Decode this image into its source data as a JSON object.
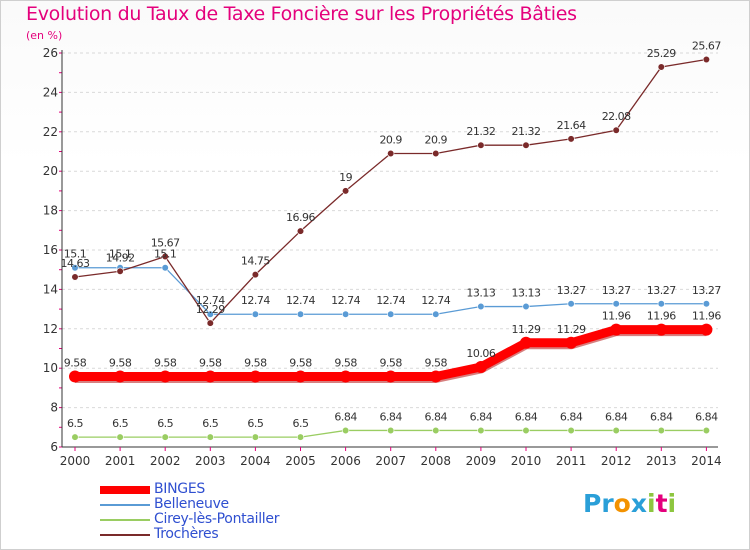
{
  "title": "Evolution du Taux de Taxe Foncière sur les Propriétés Bâties",
  "subtitle": "(en %)",
  "logo": {
    "text": "Proxiti",
    "letters": [
      {
        "ch": "P",
        "color": "#2a9fd8"
      },
      {
        "ch": "r",
        "color": "#2a9fd8"
      },
      {
        "ch": "o",
        "color": "#f39200"
      },
      {
        "ch": "x",
        "color": "#2a9fd8"
      },
      {
        "ch": "i",
        "color": "#8dc63f"
      },
      {
        "ch": "t",
        "color": "#e4007c"
      },
      {
        "ch": "i",
        "color": "#8dc63f"
      }
    ]
  },
  "chart_data": {
    "type": "line",
    "title": "Evolution du Taux de Taxe Foncière sur les Propriétés Bâties",
    "ylabel": "(en %)",
    "xlabel": "",
    "x": [
      "2000",
      "2001",
      "2002",
      "2003",
      "2004",
      "2005",
      "2006",
      "2007",
      "2008",
      "2009",
      "2010",
      "2011",
      "2012",
      "2013",
      "2014"
    ],
    "ylim": [
      6,
      26
    ],
    "yticks": [
      6,
      8,
      10,
      12,
      14,
      16,
      18,
      20,
      22,
      24,
      26
    ],
    "grid": "horizontal dashed",
    "legend_position": "bottom-left",
    "series": [
      {
        "name": "BINGES",
        "color": "#ff0000",
        "values": [
          9.58,
          9.58,
          9.58,
          9.58,
          9.58,
          9.58,
          9.58,
          9.58,
          9.58,
          10.06,
          11.29,
          11.29,
          11.96,
          11.96,
          11.96
        ],
        "labels": [
          "9.58",
          "9.58",
          "9.58",
          "9.58",
          "9.58",
          "9.58",
          "9.58",
          "9.58",
          "9.58",
          "10.06",
          "11.29",
          "11.29",
          "11.96",
          "11.96",
          "11.96"
        ]
      },
      {
        "name": "Belleneuve",
        "color": "#5a9bd5",
        "values": [
          15.1,
          15.1,
          15.1,
          12.74,
          12.74,
          12.74,
          12.74,
          12.74,
          12.74,
          13.13,
          13.13,
          13.27,
          13.27,
          13.27,
          13.27
        ],
        "labels": [
          "15.1",
          "15.1",
          "15.1",
          "12.74",
          "12.74",
          "12.74",
          "12.74",
          "12.74",
          "12.74",
          "13.13",
          "13.13",
          "13.27",
          "13.27",
          "13.27",
          "13.27"
        ]
      },
      {
        "name": "Cirey-lès-Pontailler",
        "color": "#9acd62",
        "values": [
          6.5,
          6.5,
          6.5,
          6.5,
          6.5,
          6.5,
          6.84,
          6.84,
          6.84,
          6.84,
          6.84,
          6.84,
          6.84,
          6.84,
          6.84
        ],
        "labels": [
          "6.5",
          "6.5",
          "6.5",
          "6.5",
          "6.5",
          "6.5",
          "6.84",
          "6.84",
          "6.84",
          "6.84",
          "6.84",
          "6.84",
          "6.84",
          "6.84",
          "6.84"
        ]
      },
      {
        "name": "Trochères",
        "color": "#7a2a2a",
        "values": [
          14.63,
          14.92,
          15.67,
          12.29,
          14.75,
          16.96,
          19,
          20.9,
          20.9,
          21.32,
          21.32,
          21.64,
          22.08,
          25.29,
          25.67
        ],
        "labels": [
          "14.63",
          "14.92",
          "15.67",
          "12.29",
          "14.75",
          "16.96",
          "19",
          "20.9",
          "20.9",
          "21.32",
          "21.32",
          "21.64",
          "22.08",
          "25.29",
          "25.67"
        ]
      }
    ]
  }
}
